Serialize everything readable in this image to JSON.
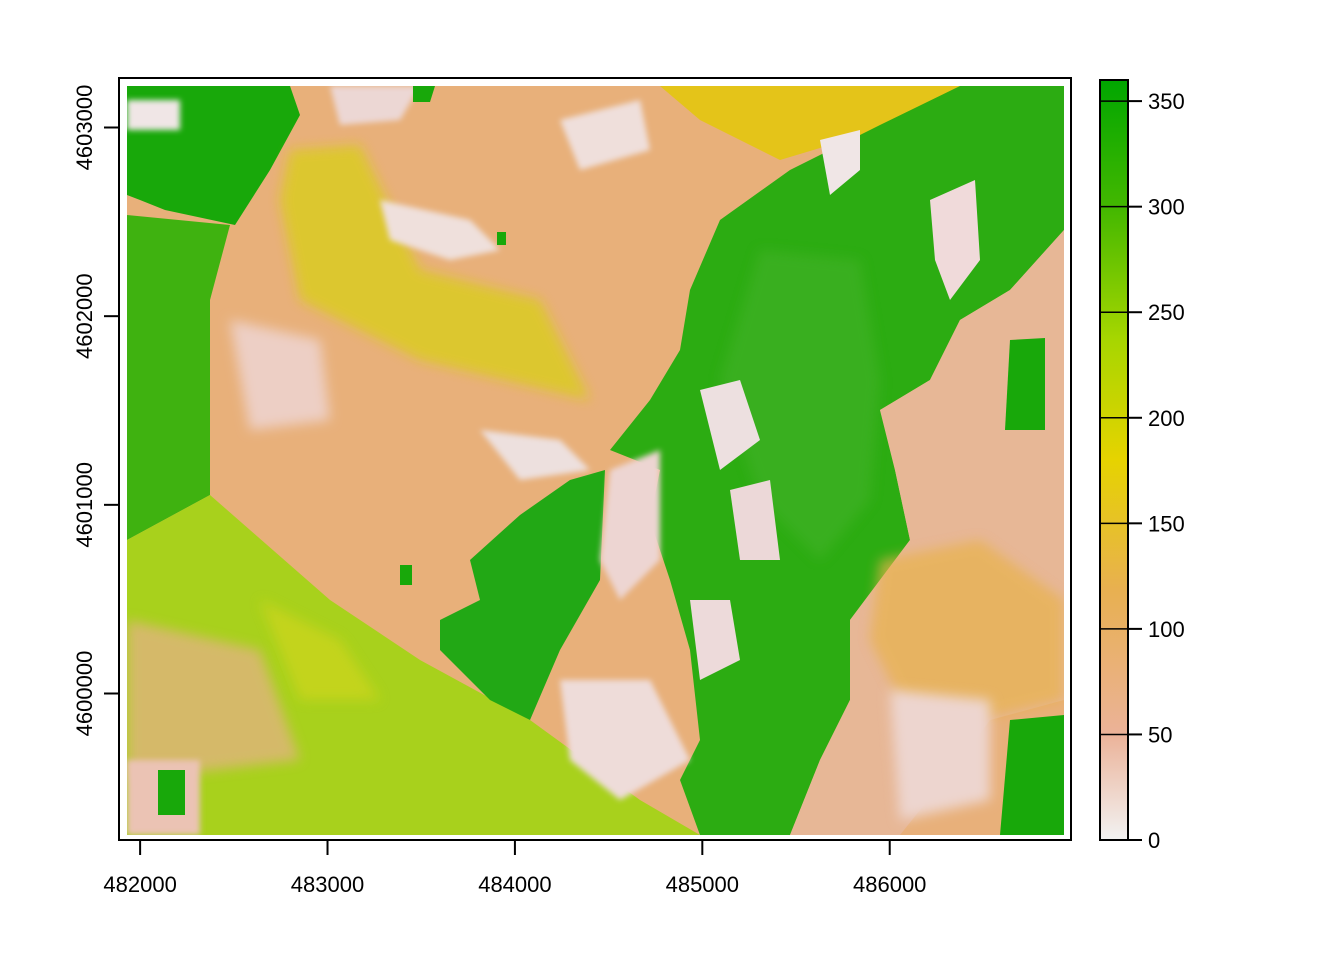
{
  "map": {
    "title": "",
    "x_axis": {
      "label": "",
      "range": [
        481930,
        486930
      ],
      "ticks": [
        {
          "value": 482000,
          "label": "482000"
        },
        {
          "value": 483000,
          "label": "483000"
        },
        {
          "value": 484000,
          "label": "484000"
        },
        {
          "value": 485000,
          "label": "485000"
        },
        {
          "value": 486000,
          "label": "486000"
        }
      ]
    },
    "y_axis": {
      "label": "",
      "range": [
        4599250,
        4603220
      ],
      "ticks": [
        {
          "value": 4600000,
          "label": "4600000"
        },
        {
          "value": 4601000,
          "label": "4601000"
        },
        {
          "value": 4602000,
          "label": "4602000"
        },
        {
          "value": 4603000,
          "label": "4603000"
        }
      ]
    },
    "raster": {
      "value_range": [
        0,
        360
      ],
      "color_ramp": [
        "#f2f2f2",
        "#ebb298",
        "#e8b050",
        "#e6d300",
        "#a6d600",
        "#44b800",
        "#00a600"
      ]
    },
    "legend": {
      "placement": "right",
      "range": [
        0,
        360
      ],
      "ticks": [
        {
          "value": 0,
          "label": "0"
        },
        {
          "value": 50,
          "label": "50"
        },
        {
          "value": 100,
          "label": "100"
        },
        {
          "value": 150,
          "label": "150"
        },
        {
          "value": 200,
          "label": "200"
        },
        {
          "value": 250,
          "label": "250"
        },
        {
          "value": 300,
          "label": "300"
        },
        {
          "value": 350,
          "label": "350"
        }
      ]
    }
  }
}
